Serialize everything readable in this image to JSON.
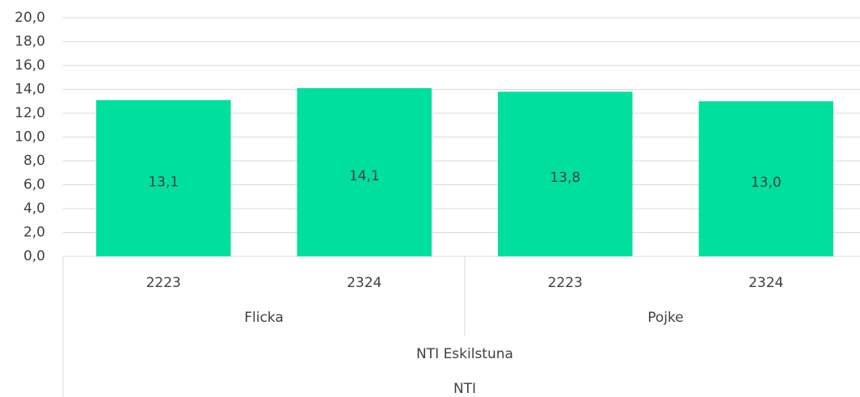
{
  "chart_data": {
    "type": "bar",
    "category_levels": [
      [
        "2223",
        "2324",
        "2223",
        "2324"
      ],
      [
        "Flicka",
        "Pojke"
      ],
      [
        "NTI Eskilstuna"
      ],
      [
        "NTI"
      ]
    ],
    "values": [
      13.1,
      14.1,
      13.8,
      13.0
    ],
    "value_labels": [
      "13,1",
      "14,1",
      "13,8",
      "13,0"
    ],
    "color": "#00df9e",
    "ylim": [
      0,
      20
    ],
    "yticks": [
      {
        "value": 0,
        "label": "0,0"
      },
      {
        "value": 2,
        "label": "2,0"
      },
      {
        "value": 4,
        "label": "4,0"
      },
      {
        "value": 6,
        "label": "6,0"
      },
      {
        "value": 8,
        "label": "8,0"
      },
      {
        "value": 10,
        "label": "10,0"
      },
      {
        "value": 12,
        "label": "12,0"
      },
      {
        "value": 14,
        "label": "14,0"
      },
      {
        "value": 16,
        "label": "16,0"
      },
      {
        "value": 18,
        "label": "18,0"
      },
      {
        "value": 20,
        "label": "20,0"
      }
    ],
    "grid": true
  }
}
